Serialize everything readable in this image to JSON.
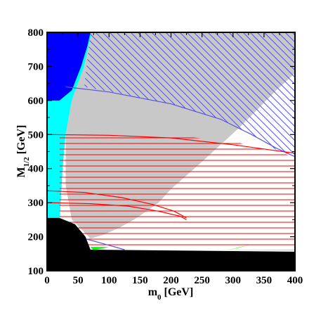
{
  "chart_data": {
    "type": "area",
    "xlabel": {
      "main": "m",
      "sub": "0",
      "unit": " [GeV]"
    },
    "ylabel": {
      "main": "M",
      "sub": "1/2",
      "unit": " [GeV]"
    },
    "xlim": [
      0,
      400
    ],
    "ylim": [
      100,
      800
    ],
    "x_ticks": [
      "0",
      "50",
      "100",
      "150",
      "200",
      "250",
      "300",
      "350",
      "400"
    ],
    "y_ticks": [
      "100",
      "200",
      "300",
      "400",
      "500",
      "600",
      "700",
      "800"
    ],
    "grid": false,
    "regions": [
      {
        "name": "cyan",
        "color": "#00ffff",
        "boundary": [
          [
            0,
            800
          ],
          [
            72,
            800
          ],
          [
            60,
            700
          ],
          [
            40,
            600
          ],
          [
            30,
            500
          ],
          [
            25,
            400
          ],
          [
            22,
            300
          ],
          [
            20,
            250
          ],
          [
            0,
            250
          ]
        ]
      },
      {
        "name": "gray",
        "color": "#c8c8c8",
        "boundary": [
          [
            72,
            800
          ],
          [
            400,
            800
          ],
          [
            400,
            680
          ],
          [
            370,
            630
          ],
          [
            340,
            575
          ],
          [
            310,
            520
          ],
          [
            280,
            470
          ],
          [
            250,
            420
          ],
          [
            225,
            380
          ],
          [
            200,
            340
          ],
          [
            180,
            300
          ],
          [
            165,
            280
          ],
          [
            140,
            250
          ],
          [
            115,
            225
          ],
          [
            90,
            205
          ],
          [
            70,
            195
          ],
          [
            40,
            250
          ],
          [
            30,
            350
          ],
          [
            30,
            500
          ],
          [
            40,
            600
          ],
          [
            60,
            700
          ]
        ]
      },
      {
        "name": "blue",
        "color": "#0000ff",
        "boundary": [
          [
            0,
            800
          ],
          [
            70,
            800
          ],
          [
            65,
            760
          ],
          [
            55,
            700
          ],
          [
            40,
            630
          ],
          [
            20,
            600
          ],
          [
            0,
            600
          ]
        ]
      },
      {
        "name": "green-1",
        "color": "#00ff00",
        "boundary": [
          [
            70,
            170
          ],
          [
            100,
            170
          ],
          [
            75,
            160
          ]
        ]
      },
      {
        "name": "green-2",
        "color": "#00ff00",
        "boundary": [
          [
            290,
            160
          ],
          [
            330,
            178
          ],
          [
            310,
            168
          ]
        ]
      },
      {
        "name": "black",
        "color": "#000000",
        "boundary": [
          [
            0,
            100
          ],
          [
            400,
            100
          ],
          [
            400,
            156
          ],
          [
            70,
            162
          ],
          [
            62,
            200
          ],
          [
            45,
            237
          ],
          [
            20,
            255
          ],
          [
            0,
            255
          ]
        ]
      }
    ],
    "hatch_regions": [
      {
        "name": "blue-diagonal-hatch",
        "color": "#5555dd",
        "boundary": [
          [
            70,
            800
          ],
          [
            400,
            800
          ],
          [
            400,
            435
          ],
          [
            370,
            455
          ],
          [
            330,
            500
          ],
          [
            280,
            545
          ],
          [
            200,
            590
          ],
          [
            120,
            620
          ],
          [
            60,
            640
          ]
        ]
      },
      {
        "name": "red-horizontal-hatch",
        "color": "#ff0000",
        "boundary": [
          [
            20,
            500
          ],
          [
            200,
            498
          ],
          [
            300,
            480
          ],
          [
            400,
            435
          ],
          [
            400,
            160
          ],
          [
            70,
            162
          ],
          [
            60,
            200
          ],
          [
            40,
            240
          ],
          [
            20,
            255
          ]
        ]
      }
    ],
    "curves": [
      {
        "name": "blue-curve-upper",
        "color": "#5555dd",
        "points": [
          [
            30,
            640
          ],
          [
            100,
            625
          ],
          [
            200,
            590
          ],
          [
            280,
            545
          ],
          [
            330,
            500
          ],
          [
            370,
            460
          ],
          [
            400,
            435
          ]
        ]
      },
      {
        "name": "blue-curve-lower",
        "color": "#5555dd",
        "points": [
          [
            60,
            195
          ],
          [
            90,
            180
          ],
          [
            125,
            162
          ]
        ]
      },
      {
        "name": "red-curve-top",
        "color": "#ff0000",
        "points": [
          [
            0,
            500
          ],
          [
            100,
            498
          ],
          [
            200,
            490
          ],
          [
            300,
            470
          ],
          [
            400,
            445
          ]
        ]
      },
      {
        "name": "red-curve-middle",
        "color": "#ff0000",
        "points": [
          [
            0,
            335
          ],
          [
            60,
            330
          ],
          [
            120,
            315
          ],
          [
            170,
            295
          ],
          [
            205,
            275
          ],
          [
            225,
            255
          ]
        ]
      },
      {
        "name": "red-curve-lower",
        "color": "#ff0000",
        "points": [
          [
            0,
            300
          ],
          [
            70,
            297
          ],
          [
            130,
            290
          ],
          [
            180,
            275
          ],
          [
            215,
            260
          ],
          [
            225,
            250
          ]
        ]
      }
    ]
  }
}
